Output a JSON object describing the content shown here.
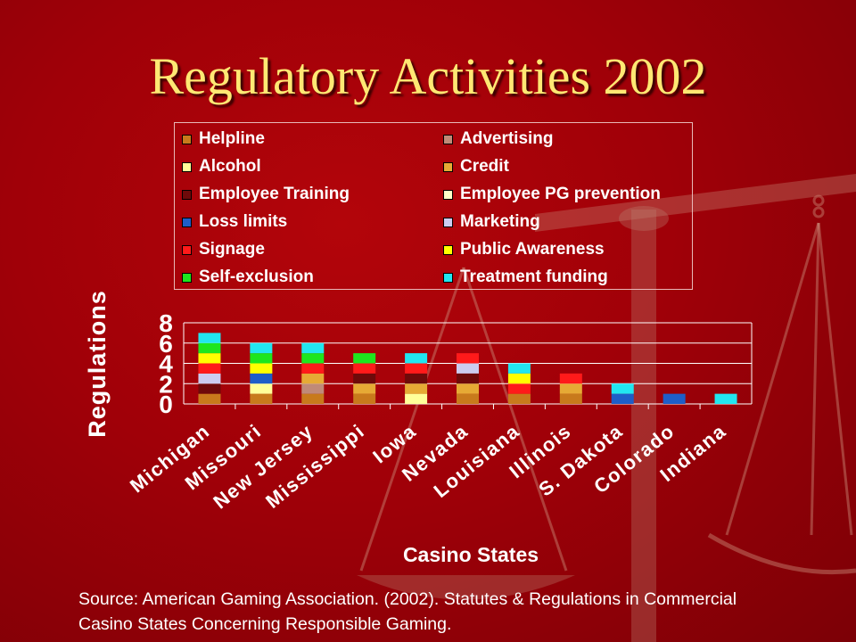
{
  "slide": {
    "title": "Regulatory Activities 2002",
    "source": "Source: American Gaming Association. (2002). Statutes & Regulations in Commercial Casino States Concerning Responsible Gaming."
  },
  "colors": {
    "background": "#a30008",
    "title": "#ffe873",
    "text": "#ffffff",
    "grid": "#ffffff"
  },
  "chart_data": {
    "type": "bar",
    "stacked": true,
    "xlabel": "Casino States",
    "ylabel": "Regulations",
    "ylim": [
      0,
      8
    ],
    "yticks": [
      0,
      2,
      4,
      6,
      8
    ],
    "grid": true,
    "legend_position": "top",
    "categories": [
      "Michigan",
      "Missouri",
      "New Jersey",
      "Mississippi",
      "Iowa",
      "Nevada",
      "Louisiana",
      "Illinois",
      "S. Dakota",
      "Colorado",
      "Indiana"
    ],
    "series": [
      {
        "name": "Helpline",
        "color": "#c87a1c",
        "values": [
          1,
          1,
          1,
          1,
          0,
          1,
          1,
          1,
          0,
          0,
          0
        ]
      },
      {
        "name": "Advertising",
        "color": "#c08a78",
        "values": [
          0,
          0,
          1,
          0,
          0,
          0,
          0,
          0,
          0,
          0,
          0
        ]
      },
      {
        "name": "Alcohol",
        "color": "#ffff99",
        "values": [
          0,
          1,
          0,
          0,
          1,
          0,
          0,
          0,
          0,
          0,
          0
        ]
      },
      {
        "name": "Credit",
        "color": "#e6aa35",
        "values": [
          0,
          0,
          1,
          1,
          1,
          1,
          0,
          1,
          0,
          0,
          0
        ]
      },
      {
        "name": "Employee Training",
        "color": "#6e0a0a",
        "values": [
          1,
          0,
          0,
          1,
          1,
          1,
          0,
          0,
          0,
          0,
          0
        ]
      },
      {
        "name": "Employee PG prevention",
        "color": "#ffffc8",
        "values": [
          0,
          0,
          0,
          0,
          0,
          0,
          0,
          0,
          0,
          0,
          0
        ]
      },
      {
        "name": "Loss limits",
        "color": "#1e5ec8",
        "values": [
          0,
          1,
          0,
          0,
          0,
          0,
          0,
          0,
          1,
          1,
          0
        ]
      },
      {
        "name": "Marketing",
        "color": "#ccccf0",
        "values": [
          1,
          0,
          0,
          0,
          0,
          1,
          0,
          0,
          0,
          0,
          0
        ]
      },
      {
        "name": "Signage",
        "color": "#ff1a1a",
        "values": [
          1,
          0,
          1,
          1,
          1,
          1,
          1,
          1,
          0,
          0,
          0
        ]
      },
      {
        "name": "Public Awareness",
        "color": "#ffff00",
        "values": [
          1,
          1,
          0,
          0,
          0,
          0,
          1,
          0,
          0,
          0,
          0
        ]
      },
      {
        "name": "Self-exclusion",
        "color": "#1ee61e",
        "values": [
          1,
          1,
          1,
          1,
          0,
          0,
          0,
          0,
          0,
          0,
          0
        ]
      },
      {
        "name": "Treatment funding",
        "color": "#22e6f0",
        "values": [
          1,
          1,
          1,
          0,
          1,
          0,
          1,
          0,
          1,
          0,
          1
        ]
      }
    ]
  }
}
